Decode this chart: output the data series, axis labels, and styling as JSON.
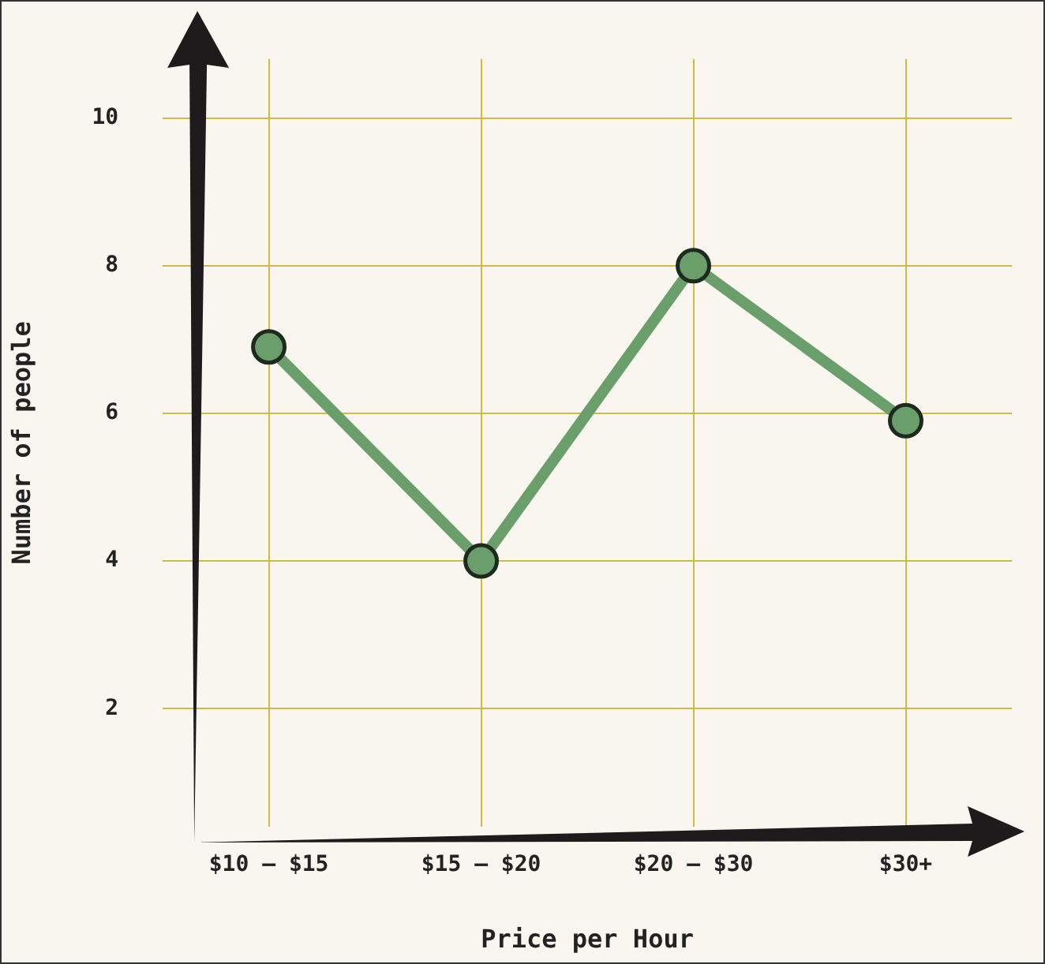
{
  "chart_data": {
    "type": "line",
    "xlabel": "Price per Hour",
    "ylabel": "Number of people",
    "categories": [
      "$10 – $15",
      "$15 – $20",
      "$20 – $30",
      "$30+"
    ],
    "series": [
      {
        "color": "#6a9e6a",
        "values": [
          6.9,
          4,
          8,
          5.9
        ]
      }
    ],
    "ylim": [
      0.4,
      10.8
    ],
    "yticks": [
      2,
      4,
      6,
      8,
      10
    ],
    "grid": true,
    "legend": false,
    "marker": "circle",
    "line_style": "solid"
  }
}
